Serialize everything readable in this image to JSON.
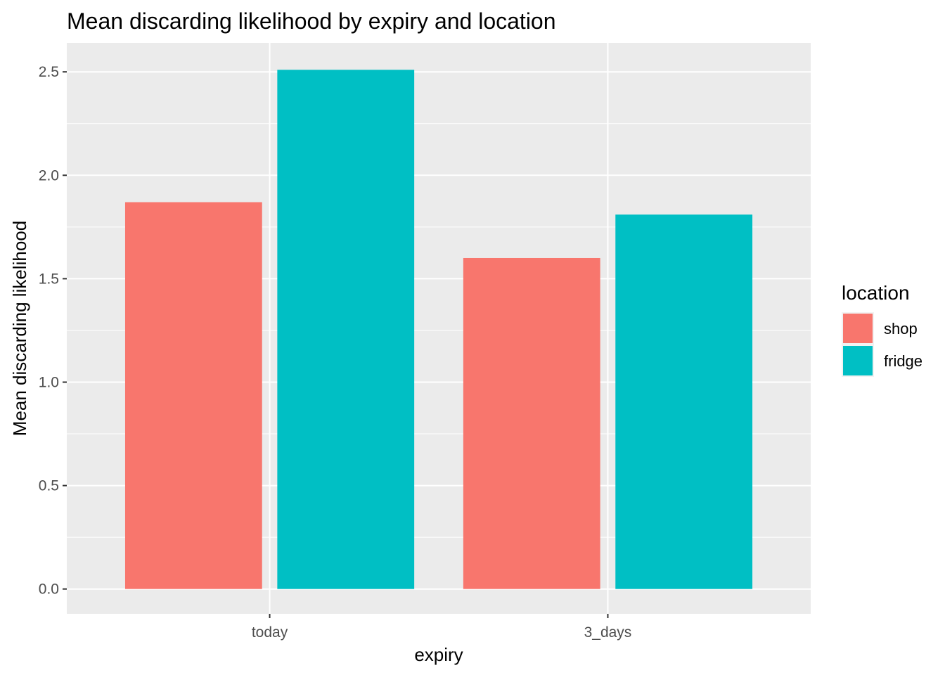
{
  "chart_data": {
    "type": "bar",
    "title": "Mean discarding likelihood by expiry and location",
    "xlabel": "expiry",
    "ylabel": "Mean discarding likelihood",
    "categories": [
      "today",
      "3_days"
    ],
    "series": [
      {
        "name": "shop",
        "color": "#F8766D",
        "values": [
          1.87,
          1.6
        ]
      },
      {
        "name": "fridge",
        "color": "#00BFC4",
        "values": [
          2.51,
          1.81
        ]
      }
    ],
    "ylim": [
      -0.12,
      2.64
    ],
    "yticks": [
      0.0,
      0.5,
      1.0,
      1.5,
      2.0,
      2.5
    ],
    "ytick_labels": [
      "0.0",
      "0.5",
      "1.0",
      "1.5",
      "2.0",
      "2.5"
    ],
    "grid": true,
    "legend": {
      "title": "location",
      "position": "right"
    },
    "colors": {
      "panel_background": "#EBEBEB",
      "grid": "#FFFFFF"
    }
  }
}
